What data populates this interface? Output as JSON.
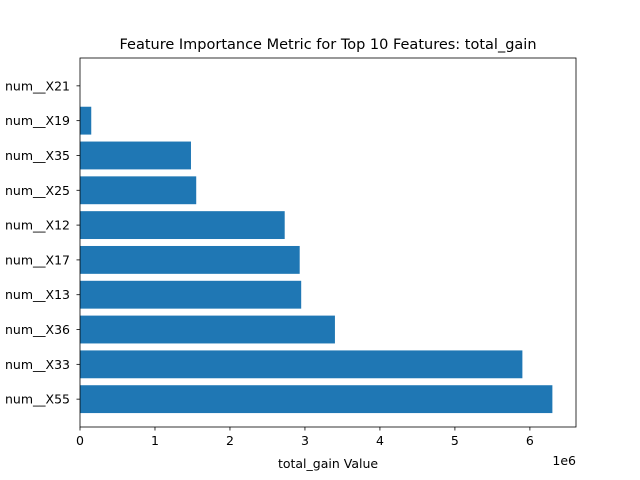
{
  "colors": {
    "bar": "#1f77b4",
    "axes": "#000000",
    "background": "#ffffff"
  },
  "chart_data": {
    "type": "bar",
    "orientation": "horizontal",
    "title": "Feature Importance Metric for Top 10 Features: total_gain",
    "xlabel": "total_gain Value",
    "ylabel": "",
    "x_offset_label": "1e6",
    "x_scale_factor": 1000000,
    "xlim": [
      0,
      6615000
    ],
    "x_ticks": [
      0,
      1000000,
      2000000,
      3000000,
      4000000,
      5000000,
      6000000
    ],
    "x_tick_labels": [
      "0",
      "1",
      "2",
      "3",
      "4",
      "5",
      "6"
    ],
    "grid": false,
    "categories": [
      "num__X55",
      "num__X33",
      "num__X36",
      "num__X13",
      "num__X17",
      "num__X12",
      "num__X25",
      "num__X35",
      "num__X19",
      "num__X21"
    ],
    "values": [
      6300000,
      5900000,
      3400000,
      2950000,
      2930000,
      2730000,
      1550000,
      1480000,
      150000,
      0
    ]
  }
}
